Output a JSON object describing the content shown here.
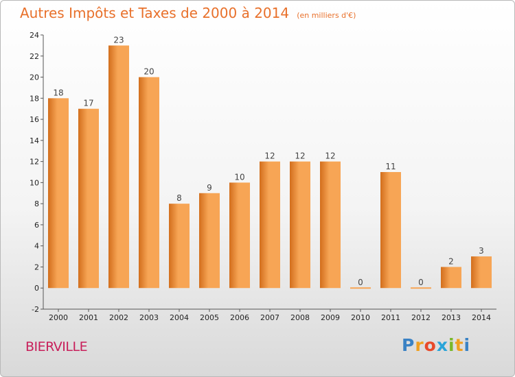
{
  "header": {
    "title": "Autres Impôts et Taxes de 2000 à 2014",
    "subtitle": "(en milliers d'€)"
  },
  "footer": {
    "commune": "BIERVILLE",
    "logo_letters": [
      "P",
      "r",
      "o",
      "x",
      "i",
      "t",
      "i"
    ],
    "logo_colors": [
      "#3a82c4",
      "#f0a020",
      "#e84a2a",
      "#2aa4d8",
      "#7ab82a",
      "#f0a020",
      "#3a82c4"
    ]
  },
  "colors": {
    "title": "#e8702a",
    "commune": "#c81f5a",
    "bar_light": "#f7a555",
    "bar_dark": "#d26e1c",
    "axis": "#555555"
  },
  "chart_data": {
    "type": "bar",
    "title": "Autres Impôts et Taxes de 2000 à 2014",
    "subtitle": "(en milliers d'€)",
    "categories": [
      "2000",
      "2001",
      "2002",
      "2003",
      "2004",
      "2005",
      "2006",
      "2007",
      "2008",
      "2009",
      "2010",
      "2011",
      "2012",
      "2013",
      "2014"
    ],
    "values": [
      18,
      17,
      23,
      20,
      8,
      9,
      10,
      12,
      12,
      12,
      0,
      11,
      0,
      2,
      3
    ],
    "value_labels": [
      "18",
      "17",
      "23",
      "20",
      "8",
      "9",
      "10",
      "12",
      "12",
      "12",
      "0",
      "11",
      "0",
      "2",
      "3"
    ],
    "yticks": [
      "-2",
      "0",
      "2",
      "4",
      "6",
      "8",
      "10",
      "12",
      "14",
      "16",
      "18",
      "20",
      "22",
      "24"
    ],
    "ylim": [
      -2,
      24
    ],
    "xlabel": "",
    "ylabel": "",
    "grid": false,
    "legend": "none"
  }
}
